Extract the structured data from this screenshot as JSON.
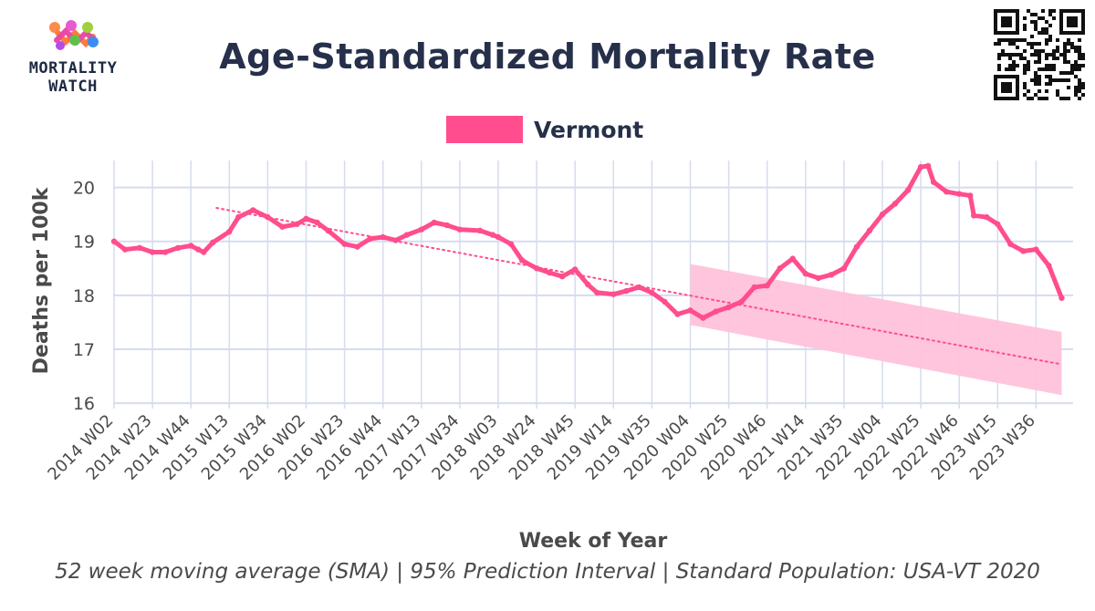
{
  "brand": {
    "line1": "MORTALITY",
    "line2": "WATCH"
  },
  "title": "Age-Standardized Mortality Rate",
  "legend": {
    "label": "Vermont"
  },
  "footer": "52 week moving average (SMA) | 95% Prediction Interval | Standard Population: USA-VT 2020",
  "colors": {
    "series": "#ff4d8d",
    "band": "#ffc2da",
    "grid": "#d6dcef",
    "axis_text": "#4a4a4a",
    "title": "#26304a"
  },
  "chart_data": {
    "type": "line",
    "title": "Age-Standardized Mortality Rate",
    "xlabel": "Week of Year",
    "ylabel": "Deaths per 100k",
    "ylim": [
      15.9,
      20.5
    ],
    "yticks": [
      16,
      17,
      18,
      19,
      20
    ],
    "x_tick_labels": [
      "2014 W02",
      "2014 W23",
      "2014 W44",
      "2015 W13",
      "2015 W34",
      "2016 W02",
      "2016 W23",
      "2016 W44",
      "2017 W13",
      "2017 W34",
      "2018 W03",
      "2018 W24",
      "2018 W45",
      "2019 W14",
      "2019 W35",
      "2020 W04",
      "2020 W25",
      "2020 W46",
      "2021 W14",
      "2021 W35",
      "2022 W04",
      "2022 W25",
      "2022 W46",
      "2023 W15",
      "2023 W36"
    ],
    "grid": true,
    "legend_position": "top-center",
    "series": [
      {
        "name": "Vermont",
        "values": [
          [
            "2014 W02",
            19.0
          ],
          [
            "2014 W08",
            18.85
          ],
          [
            "2014 W16",
            18.88
          ],
          [
            "2014 W23",
            18.8
          ],
          [
            "2014 W30",
            18.8
          ],
          [
            "2014 W37",
            18.88
          ],
          [
            "2014 W44",
            18.92
          ],
          [
            "2014 W48",
            18.85
          ],
          [
            "2014 W51",
            18.8
          ],
          [
            "2015 W04",
            18.98
          ],
          [
            "2015 W13",
            19.18
          ],
          [
            "2015 W18",
            19.45
          ],
          [
            "2015 W26",
            19.58
          ],
          [
            "2015 W34",
            19.45
          ],
          [
            "2015 W42",
            19.27
          ],
          [
            "2015 W50",
            19.32
          ],
          [
            "2016 W02",
            19.42
          ],
          [
            "2016 W08",
            19.35
          ],
          [
            "2016 W14",
            19.2
          ],
          [
            "2016 W23",
            18.95
          ],
          [
            "2016 W30",
            18.9
          ],
          [
            "2016 W37",
            19.05
          ],
          [
            "2016 W44",
            19.08
          ],
          [
            "2016 W51",
            19.02
          ],
          [
            "2017 W05",
            19.12
          ],
          [
            "2017 W13",
            19.22
          ],
          [
            "2017 W20",
            19.35
          ],
          [
            "2017 W27",
            19.3
          ],
          [
            "2017 W34",
            19.22
          ],
          [
            "2017 W45",
            19.2
          ],
          [
            "2017 W52",
            19.12
          ],
          [
            "2018 W03",
            19.08
          ],
          [
            "2018 W10",
            18.95
          ],
          [
            "2018 W16",
            18.65
          ],
          [
            "2018 W24",
            18.5
          ],
          [
            "2018 W31",
            18.42
          ],
          [
            "2018 W38",
            18.35
          ],
          [
            "2018 W45",
            18.48
          ],
          [
            "2018 W52",
            18.2
          ],
          [
            "2019 W05",
            18.05
          ],
          [
            "2019 W14",
            18.02
          ],
          [
            "2019 W21",
            18.08
          ],
          [
            "2019 W28",
            18.15
          ],
          [
            "2019 W35",
            18.05
          ],
          [
            "2019 W42",
            17.88
          ],
          [
            "2019 W49",
            17.65
          ],
          [
            "2020 W04",
            17.72
          ],
          [
            "2020 W11",
            17.58
          ],
          [
            "2020 W18",
            17.7
          ],
          [
            "2020 W25",
            17.78
          ],
          [
            "2020 W32",
            17.88
          ],
          [
            "2020 W39",
            18.15
          ],
          [
            "2020 W46",
            18.18
          ],
          [
            "2020 W53",
            18.5
          ],
          [
            "2021 W07",
            18.68
          ],
          [
            "2021 W14",
            18.4
          ],
          [
            "2021 W21",
            18.32
          ],
          [
            "2021 W28",
            18.38
          ],
          [
            "2021 W35",
            18.5
          ],
          [
            "2021 W42",
            18.9
          ],
          [
            "2021 W49",
            19.2
          ],
          [
            "2022 W04",
            19.5
          ],
          [
            "2022 W11",
            19.7
          ],
          [
            "2022 W18",
            19.95
          ],
          [
            "2022 W25",
            20.38
          ],
          [
            "2022 W29",
            20.4
          ],
          [
            "2022 W32",
            20.1
          ],
          [
            "2022 W39",
            19.92
          ],
          [
            "2022 W46",
            19.88
          ],
          [
            "2022 W52",
            19.85
          ],
          [
            "2023 W02",
            19.48
          ],
          [
            "2023 W09",
            19.45
          ],
          [
            "2023 W15",
            19.32
          ],
          [
            "2023 W22",
            18.95
          ],
          [
            "2023 W29",
            18.82
          ],
          [
            "2023 W36",
            18.85
          ],
          [
            "2023 W43",
            18.55
          ],
          [
            "2023 W50",
            17.95
          ]
        ]
      }
    ],
    "trend": {
      "style": "dotted",
      "from": [
        "2015 W06",
        19.62
      ],
      "to": [
        "2023 W50",
        16.72
      ]
    },
    "prediction_interval": {
      "from_week": "2020 W04",
      "to_week": "2023 W50",
      "upper": [
        18.58,
        17.32
      ],
      "lower": [
        17.45,
        16.15
      ]
    }
  }
}
